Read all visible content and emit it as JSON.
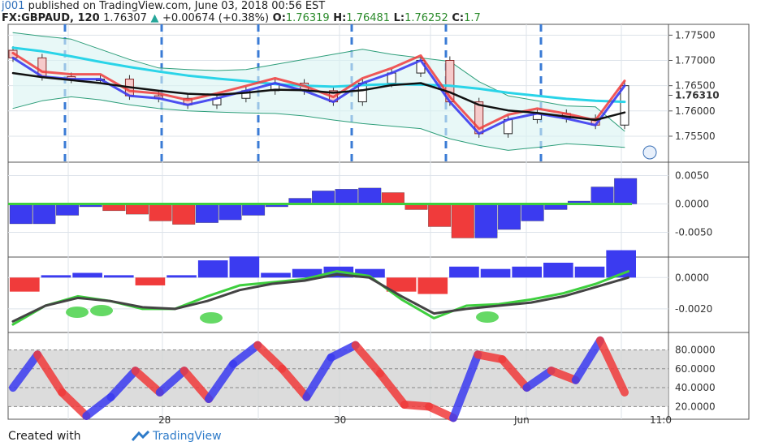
{
  "header": {
    "author": "j001",
    "published_text": "published on TradingView.com, June 03, 2018 00:56 EST",
    "symbol": "FX:GBPAUD, 120",
    "last_price": "1.76307",
    "change": "+0.00674 (+0.38%)",
    "open_label": "O:",
    "open_value": "1.76319",
    "high_label": "H:",
    "high_value": "1.76481",
    "low_label": "L:",
    "low_value": "1.76252",
    "close_label": "C:",
    "close_value": "1.7"
  },
  "footer": {
    "created_with": "Created with",
    "brand": "TradingView"
  },
  "colors": {
    "bull": "#3b3bf0",
    "bear": "#f03b3b",
    "cyan": "#2ad4e8",
    "green": "#3ecf3e",
    "grid": "#dde3ea",
    "session": "#3a7bd5"
  },
  "chart_data": [
    {
      "type": "line",
      "panel": "price",
      "x_tick_labels": [
        "28",
        "30",
        "Jun",
        "11:0"
      ],
      "y_tick_labels": [
        "1.77500",
        "1.77000",
        "1.76500",
        "1.76310",
        "1.76000",
        "1.75500"
      ],
      "ylim": [
        1.7505,
        1.7765
      ],
      "price_marker": "1.76310",
      "x": [
        0,
        6,
        12,
        18,
        24,
        30,
        36,
        42,
        48,
        54,
        60,
        66,
        72,
        78,
        84,
        90,
        96,
        102,
        108,
        114,
        120,
        126
      ],
      "close": [
        1.7705,
        1.7668,
        1.7663,
        1.7663,
        1.763,
        1.7625,
        1.7612,
        1.7625,
        1.764,
        1.7655,
        1.764,
        1.7618,
        1.7655,
        1.7675,
        1.77,
        1.7618,
        1.7555,
        1.7583,
        1.7595,
        1.7585,
        1.7572,
        1.765
      ],
      "series": [
        {
          "name": "",
          "values": [
            1.7725,
            1.7718,
            1.7708,
            1.7697,
            1.7687,
            1.7678,
            1.767,
            1.7664,
            1.7659,
            1.7653,
            1.765,
            1.7648,
            1.7651,
            1.7653,
            1.7652,
            1.765,
            1.7644,
            1.7636,
            1.763,
            1.7624,
            1.762,
            1.7618
          ]
        },
        {
          "name": "",
          "values": [
            1.7675,
            1.7667,
            1.7661,
            1.7655,
            1.7647,
            1.764,
            1.7634,
            1.7632,
            1.7636,
            1.7642,
            1.7641,
            1.7636,
            1.7641,
            1.7651,
            1.7655,
            1.7637,
            1.7612,
            1.7601,
            1.7596,
            1.7589,
            1.7582,
            1.7597
          ]
        },
        {
          "name": "",
          "values": [
            1.7755,
            1.7748,
            1.7742,
            1.7722,
            1.7702,
            1.7685,
            1.7682,
            1.768,
            1.7682,
            1.7692,
            1.7702,
            1.7712,
            1.7722,
            1.7712,
            1.7705,
            1.7698,
            1.7658,
            1.763,
            1.762,
            1.761,
            1.7608,
            1.756
          ]
        },
        {
          "name": "",
          "values": [
            1.7605,
            1.762,
            1.7628,
            1.7622,
            1.7612,
            1.7605,
            1.76,
            1.7598,
            1.7596,
            1.7595,
            1.759,
            1.7582,
            1.7575,
            1.757,
            1.7565,
            1.7545,
            1.7532,
            1.7522,
            1.7528,
            1.7535,
            1.7532,
            1.7528
          ]
        }
      ]
    },
    {
      "type": "bar",
      "panel": "histogram 1",
      "y_tick_labels": [
        "0.0050",
        "0.0000",
        "-0.0050"
      ],
      "ylim": [
        -0.0085,
        0.0065
      ],
      "values": [
        -0.0035,
        -0.0035,
        -0.002,
        -0.0005,
        -0.0012,
        -0.0018,
        -0.003,
        -0.0036,
        -0.0033,
        -0.0028,
        -0.002,
        -0.0005,
        0.001,
        0.0023,
        0.0026,
        0.0028,
        0.002,
        -0.001,
        -0.004,
        -0.006,
        -0.006,
        -0.0045,
        -0.003,
        -0.001,
        0.0005,
        0.003,
        0.0045
      ]
    },
    {
      "type": "line",
      "panel": "oscillator",
      "y_tick_labels": [
        "0.0000",
        "-0.0020"
      ],
      "ylim": [
        -0.0032,
        0.001
      ],
      "series": [
        {
          "name": "",
          "values": [
            -0.003,
            -0.0018,
            -0.0012,
            -0.0015,
            -0.002,
            -0.002,
            -0.0012,
            -0.0005,
            -0.0003,
            -0.0001,
            0.0004,
            0.0001,
            -0.0014,
            -0.0026,
            -0.0018,
            -0.0017,
            -0.0014,
            -0.001,
            -0.0004,
            0.0004
          ]
        },
        {
          "name": "",
          "values": [
            -0.0028,
            -0.0018,
            -0.0013,
            -0.0015,
            -0.0019,
            -0.002,
            -0.0015,
            -0.0008,
            -0.0004,
            -0.0002,
            0.0002,
            0.0,
            -0.0012,
            -0.0023,
            -0.002,
            -0.0018,
            -0.0016,
            -0.0012,
            -0.0006,
            0.0
          ]
        }
      ]
    },
    {
      "type": "line",
      "panel": "stochastic",
      "y_tick_labels": [
        "80.0000",
        "60.0000",
        "40.0000",
        "20.0000"
      ],
      "ylim": [
        10,
        95
      ],
      "series": [
        {
          "name": "",
          "values": [
            40,
            75,
            35,
            10,
            30,
            58,
            35,
            58,
            28,
            65,
            85,
            60,
            30,
            72,
            85,
            55,
            22,
            20,
            8,
            75,
            70,
            40,
            58,
            48,
            90,
            35
          ]
        }
      ]
    }
  ]
}
